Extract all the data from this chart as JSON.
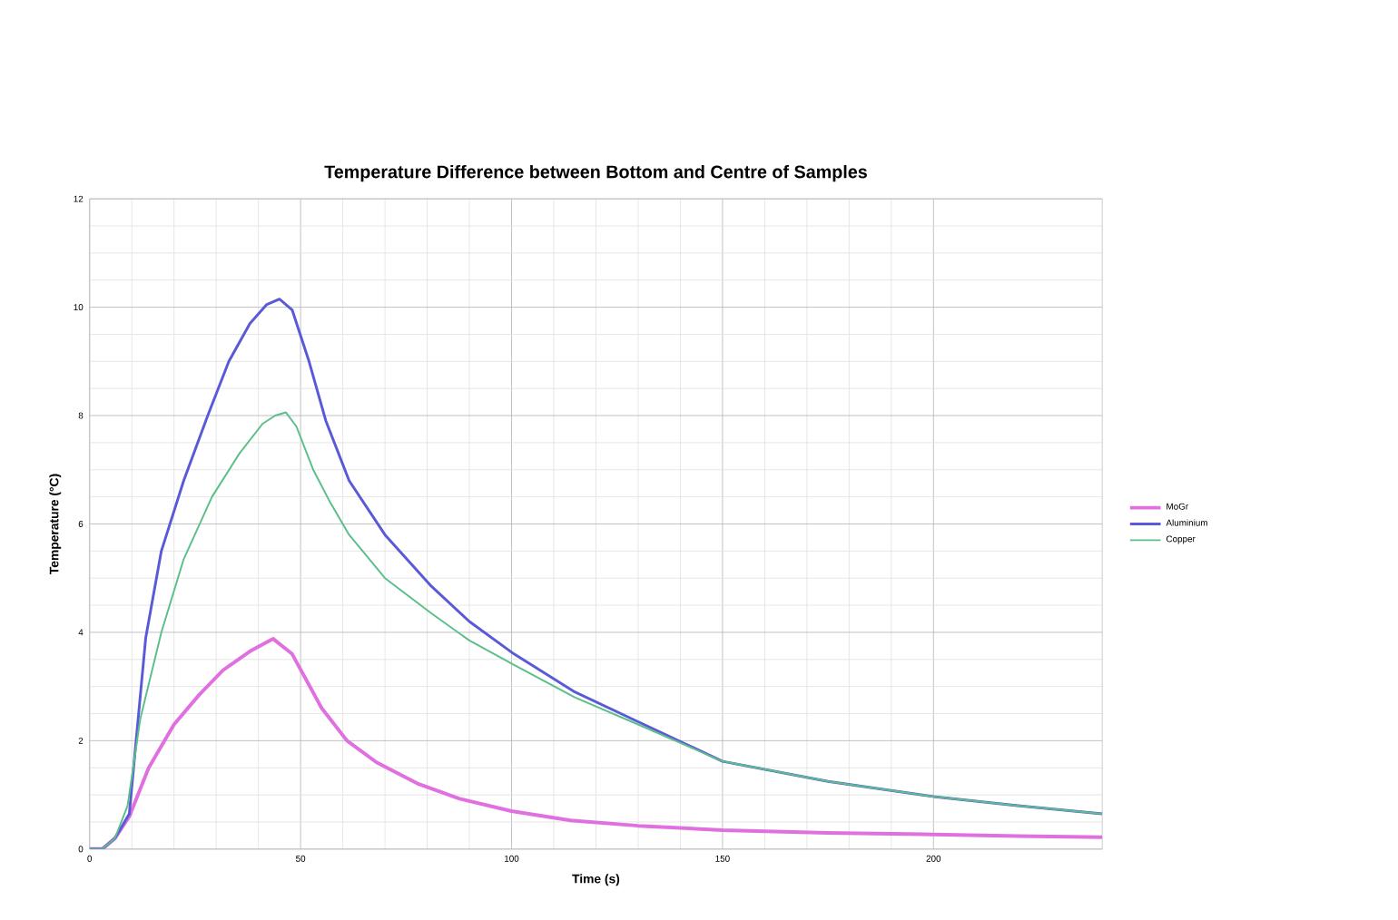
{
  "chart_data": {
    "type": "line",
    "title": "Temperature Difference between Bottom and Centre of Samples",
    "xlabel": "Time (s)",
    "ylabel": "Temperature (°C)",
    "xlim": [
      0,
      240
    ],
    "ylim": [
      0,
      12
    ],
    "xticks": [
      0,
      50,
      100,
      150,
      200
    ],
    "yticks": [
      0,
      2,
      4,
      6,
      8,
      10,
      12
    ],
    "grid": true,
    "legend": "right",
    "marker": "none",
    "line_style": "solid",
    "series": [
      {
        "name": "MoGr",
        "color": "#e070e0",
        "x": [
          0,
          3,
          6,
          9.4,
          14,
          20,
          26,
          31.6,
          38,
          43.5,
          48,
          55,
          61,
          68,
          78,
          87.7,
          100,
          114,
          130,
          150,
          175,
          200,
          220,
          240
        ],
        "values": [
          0,
          0,
          0.2,
          0.6,
          1.5,
          2.3,
          2.85,
          3.3,
          3.65,
          3.88,
          3.6,
          2.6,
          2.0,
          1.6,
          1.2,
          0.93,
          0.7,
          0.53,
          0.43,
          0.35,
          0.3,
          0.27,
          0.24,
          0.22
        ]
      },
      {
        "name": "Aluminium",
        "color": "#5a5ad8",
        "x": [
          0,
          3,
          6,
          9.4,
          13.3,
          17,
          22.3,
          28,
          33,
          38,
          42,
          45,
          48,
          52,
          56,
          61.5,
          70,
          81,
          90,
          100.6,
          115,
          130,
          150,
          175,
          200,
          220,
          240
        ],
        "values": [
          0,
          0,
          0.2,
          0.65,
          3.9,
          5.5,
          6.8,
          8.0,
          9.0,
          9.7,
          10.05,
          10.15,
          9.95,
          9.0,
          7.9,
          6.8,
          5.8,
          4.85,
          4.2,
          3.6,
          2.9,
          2.35,
          1.62,
          1.25,
          0.97,
          0.8,
          0.65
        ]
      },
      {
        "name": "Copper",
        "color": "#5cbf8a",
        "x": [
          0,
          3,
          6,
          9,
          12,
          17,
          22.3,
          29,
          35.5,
          41,
          44,
          46.5,
          49,
          53,
          57,
          61.5,
          70,
          81,
          90,
          100.6,
          115,
          130,
          150,
          175,
          200,
          220,
          240
        ],
        "values": [
          0,
          0,
          0.2,
          0.8,
          2.4,
          4.0,
          5.35,
          6.5,
          7.3,
          7.85,
          8.0,
          8.06,
          7.8,
          7.0,
          6.4,
          5.8,
          5.0,
          4.35,
          3.85,
          3.4,
          2.8,
          2.3,
          1.62,
          1.25,
          0.97,
          0.8,
          0.65
        ]
      }
    ]
  }
}
